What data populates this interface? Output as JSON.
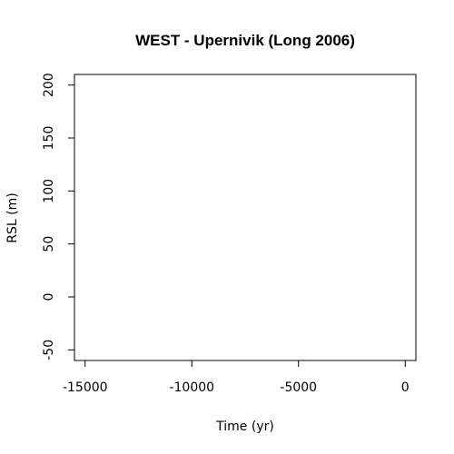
{
  "chart_data": {
    "type": "scatter",
    "title": "WEST - Upernivik (Long 2006)",
    "xlabel": "Time (yr)",
    "ylabel": "RSL (m)",
    "xlim": [
      -15500,
      500
    ],
    "ylim": [
      -60,
      210
    ],
    "x_ticks": [
      -15000,
      -10000,
      -5000,
      0
    ],
    "y_ticks": [
      -50,
      0,
      50,
      100,
      150,
      200
    ],
    "x_tick_labels": [
      "-15000",
      "-10000",
      "-5000",
      "0"
    ],
    "y_tick_labels": [
      "-50",
      "0",
      "50",
      "100",
      "150",
      "200"
    ],
    "grid": false,
    "legend": "none",
    "series": [],
    "colors": {
      "axis": "#000000",
      "background": "#ffffff"
    }
  }
}
